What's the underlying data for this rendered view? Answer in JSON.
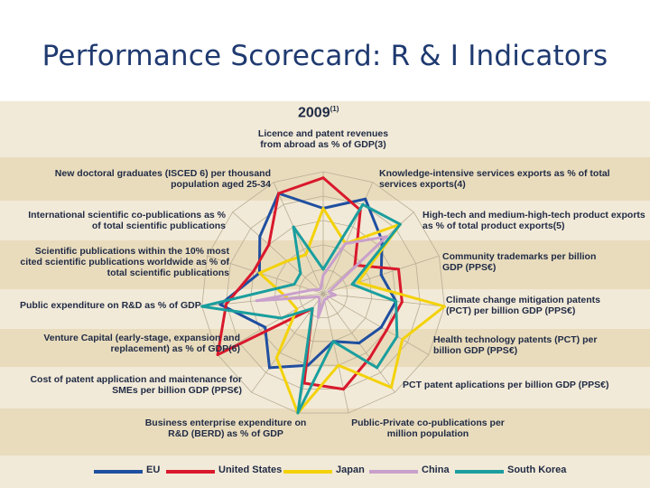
{
  "title": "Performance Scorecard: R & I Indicators",
  "chart_data": {
    "type": "radar",
    "title": "2009",
    "title_note": "(1)",
    "axes": [
      "Licence and patent revenues from abroad as % of GDP(3)",
      "Knowledge-intensive services exports as % of total services exports(4)",
      "High-tech and medium-high-tech product exports as % of total product exports(5)",
      "Community trademarks per billion GDP (PPS€)",
      "Climate change mitigation patents (PCT) per billion GDP (PPS€)",
      "Health technology patents (PCT) per billion GDP (PPS€)",
      "PCT patent aplications per billion GDP (PPS€)",
      "Public-Private co-publications per million population",
      "Business enterprise expenditure on R&D (BERD) as % of GDP",
      "Cost of patent application and maintenance for SMEs per billion GDP (PPS€)",
      "Venture Capital (early-stage, expansion and replacement) as % of GDP(6)",
      "Public expenditure on R&D as % of GDP",
      "Scientific publications within the 10% most cited scientific publications worldwide as % of total scientific publications",
      "International scientific co-publications as % of total scientific publications",
      "New doctoral graduates (ISCED 6) per thousand population aged 25-34"
    ],
    "rmax": 100,
    "series": [
      {
        "name": "EU",
        "color": "#1f4fa0",
        "values": [
          70,
          85,
          65,
          50,
          60,
          55,
          50,
          40,
          60,
          75,
          55,
          85,
          55,
          70,
          90
        ]
      },
      {
        "name": "United States",
        "color": "#d9192c",
        "values": [
          95,
          75,
          35,
          65,
          65,
          60,
          65,
          80,
          75,
          15,
          100,
          80,
          60,
          60,
          90
        ]
      },
      {
        "name": "Japan",
        "color": "#f3d20a",
        "values": [
          70,
          45,
          85,
          30,
          100,
          75,
          95,
          60,
          100,
          65,
          25,
          30,
          55,
          40,
          35
        ]
      },
      {
        "name": "China",
        "color": "#c9a0cc",
        "values": [
          15,
          45,
          70,
          5,
          10,
          5,
          5,
          5,
          20,
          5,
          5,
          55,
          10,
          5,
          5
        ]
      },
      {
        "name": "South Korea",
        "color": "#1a9e9e",
        "values": [
          20,
          80,
          85,
          25,
          60,
          70,
          75,
          40,
          100,
          15,
          40,
          100,
          25,
          25,
          60
        ]
      }
    ],
    "legend": [
      "EU",
      "United States",
      "Japan",
      "China",
      "South Korea"
    ],
    "legend_position": "bottom"
  }
}
